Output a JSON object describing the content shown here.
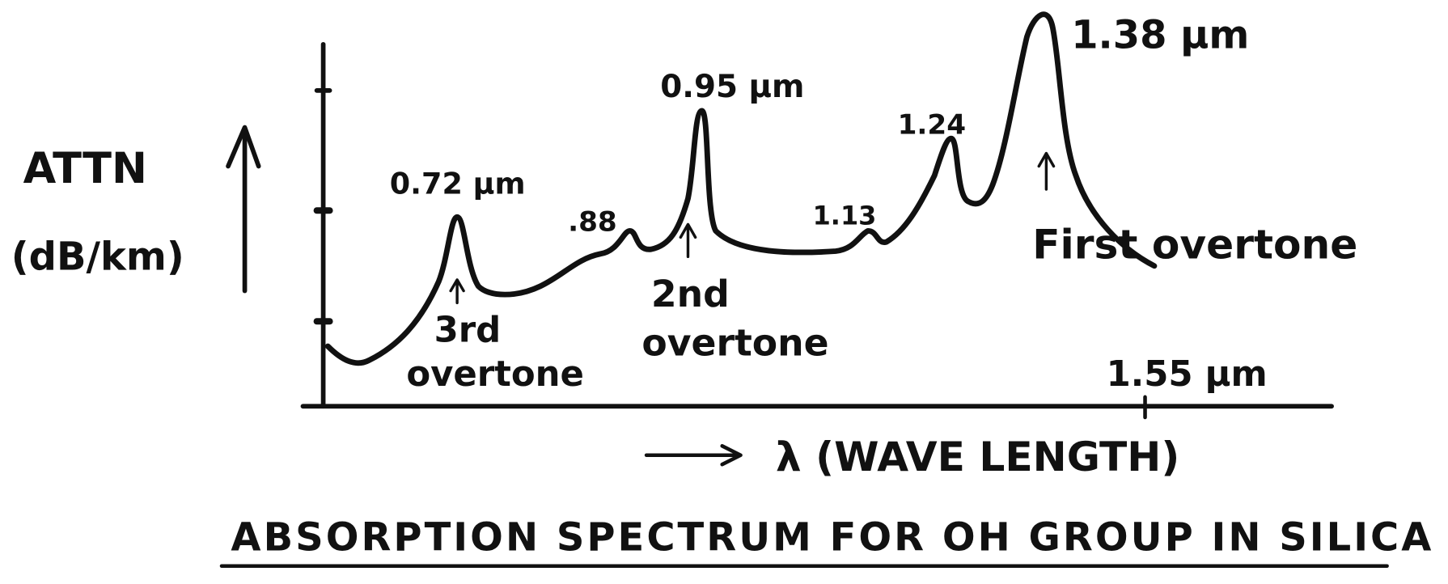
{
  "y_axis": {
    "label_line1": "ATTN",
    "label_line2": "(dB/km)"
  },
  "peaks": [
    {
      "label": "0.72 μm"
    },
    {
      "label": ".88"
    },
    {
      "label": "0.95 μm"
    },
    {
      "label": "1.13"
    },
    {
      "label": "1.24"
    },
    {
      "label": "1.38 μm"
    }
  ],
  "overtones": [
    {
      "line1": "3rd",
      "line2": "overtone"
    },
    {
      "line1": "2nd",
      "line2": "overtone"
    },
    {
      "line1": "First overtone"
    }
  ],
  "x_axis": {
    "marker": "1.55 μm",
    "label": "λ (WAVE LENGTH)"
  },
  "title": "ABSORPTION SPECTRUM FOR OH GROUP IN SILICA"
}
